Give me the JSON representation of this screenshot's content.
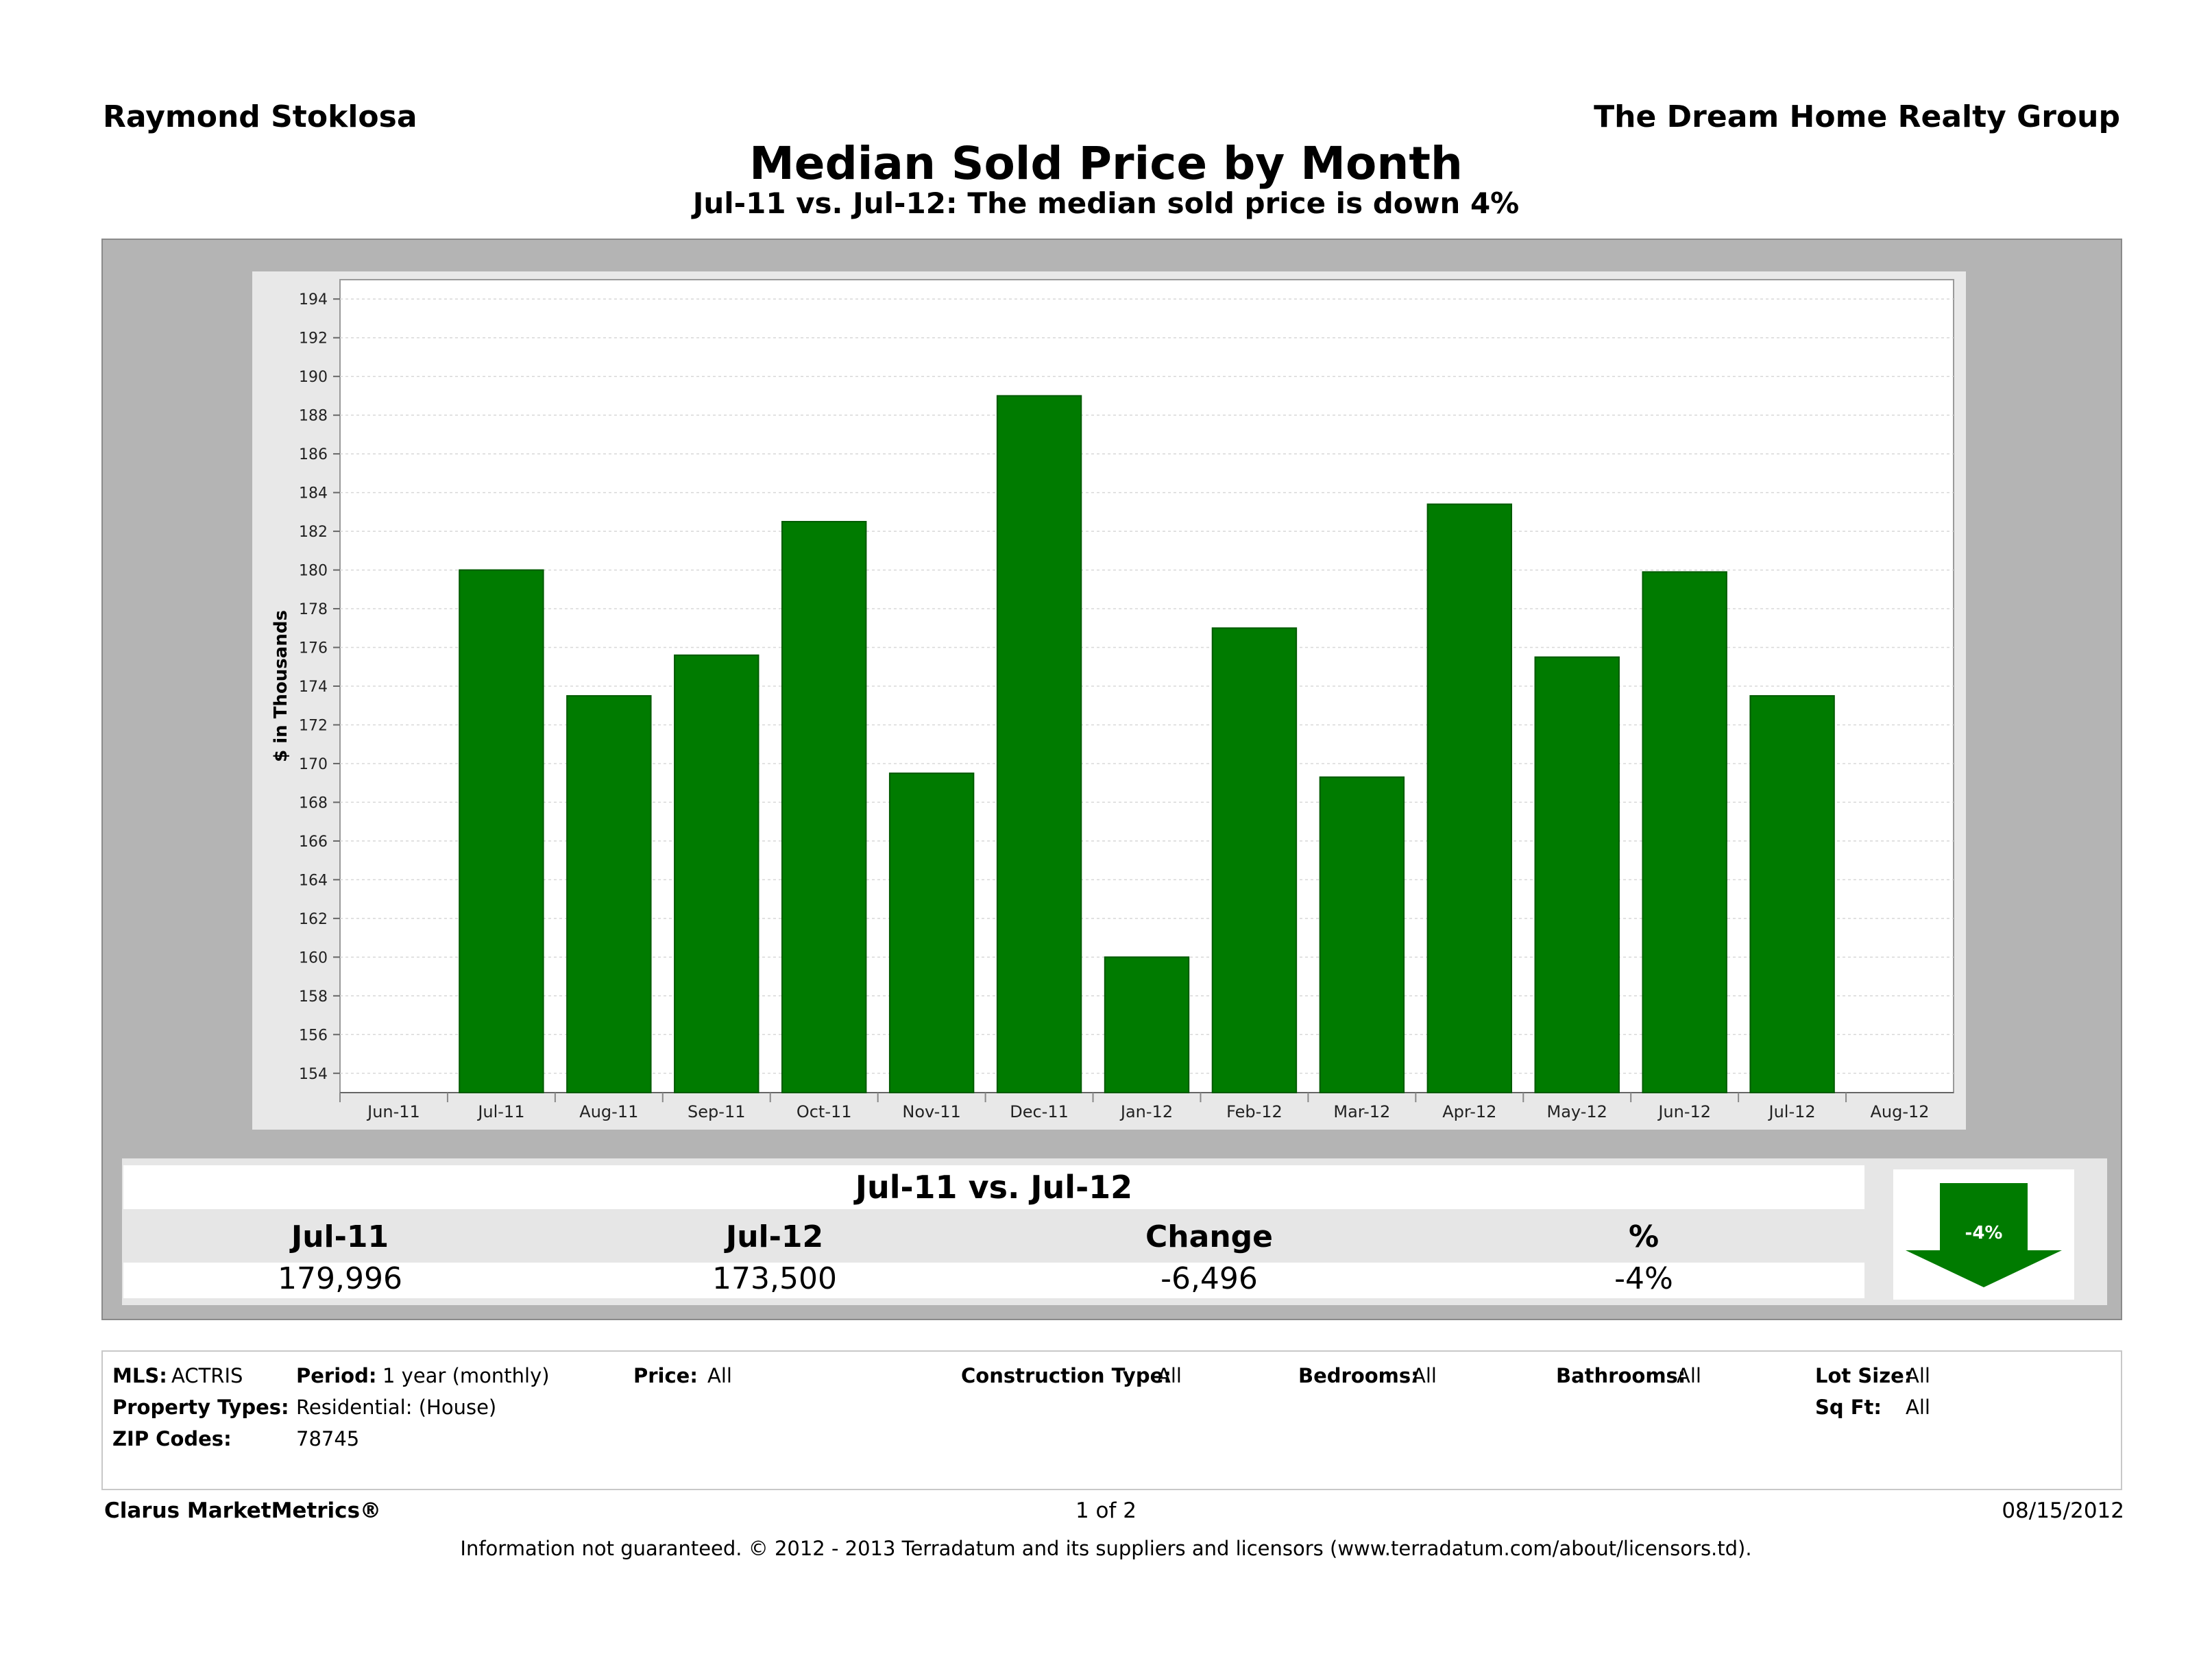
{
  "header": {
    "agent": "Raymond Stoklosa",
    "company": "The Dream Home Realty Group",
    "title": "Median Sold Price by Month",
    "subtitle": "Jul-11 vs. Jul-12:  The median sold price is down 4%"
  },
  "chart_data": {
    "type": "bar",
    "ylabel": "$ in Thousands",
    "ylim": [
      153,
      195
    ],
    "yticks": [
      154,
      156,
      158,
      160,
      162,
      164,
      166,
      168,
      170,
      172,
      174,
      176,
      178,
      180,
      182,
      184,
      186,
      188,
      190,
      192,
      194
    ],
    "xticks": [
      "Jun-11",
      "Jul-11",
      "Aug-11",
      "Sep-11",
      "Oct-11",
      "Nov-11",
      "Dec-11",
      "Jan-12",
      "Feb-12",
      "Mar-12",
      "Apr-12",
      "May-12",
      "Jun-12",
      "Jul-12",
      "Aug-12"
    ],
    "categories": [
      "Jul-11",
      "Aug-11",
      "Sep-11",
      "Oct-11",
      "Nov-11",
      "Dec-11",
      "Jan-12",
      "Feb-12",
      "Mar-12",
      "Apr-12",
      "May-12",
      "Jun-12",
      "Jul-12"
    ],
    "values": [
      180.0,
      173.5,
      175.6,
      182.5,
      169.5,
      189.0,
      160.0,
      177.0,
      169.3,
      183.4,
      175.5,
      179.9,
      173.5
    ],
    "bar_color": "#007b00",
    "grid": true
  },
  "summary": {
    "title": "Jul-11 vs. Jul-12",
    "headers": [
      "Jul-11",
      "Jul-12",
      "Change",
      "%"
    ],
    "values": [
      "179,996",
      "173,500",
      "-6,496",
      "-4%"
    ],
    "indicator": "-4%",
    "indicator_icon": "down-arrow-icon",
    "indicator_color": "#007b00"
  },
  "details": {
    "mls_label": "MLS:",
    "mls": "ACTRIS",
    "period_label": "Period:",
    "period": "1 year (monthly)",
    "price_label": "Price:",
    "price": "All",
    "construction_label": "Construction Type:",
    "construction": "All",
    "bedrooms_label": "Bedrooms:",
    "bedrooms": "All",
    "bathrooms_label": "Bathrooms:",
    "bathrooms": "All",
    "lot_label": "Lot Size:",
    "lot": "All",
    "types_label": "Property Types:",
    "types": "Residential: (House)",
    "sqft_label": "Sq Ft:",
    "sqft": "All",
    "zip_label": "ZIP Codes:",
    "zip": "78745"
  },
  "footer": {
    "brand": "Clarus MarketMetrics®",
    "page": "1 of 2",
    "date": "08/15/2012",
    "disclaimer": "Information not guaranteed.  © 2012 - 2013 Terradatum and its suppliers and licensors (www.terradatum.com/about/licensors.td)."
  }
}
